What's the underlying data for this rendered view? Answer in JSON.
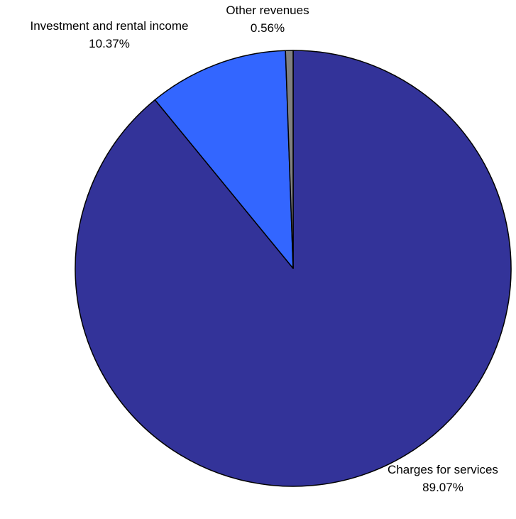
{
  "chart_data": {
    "type": "pie",
    "start_angle_deg": 0,
    "direction": "counterclockwise-from-top",
    "slices": [
      {
        "label": "Charges for services",
        "value": 89.07,
        "value_label": "89.07%",
        "color": "#333399"
      },
      {
        "label": "Investment and rental income",
        "value": 10.37,
        "value_label": "10.37%",
        "color": "#3366FF"
      },
      {
        "label": "Other revenues",
        "value": 0.56,
        "value_label": "0.56%",
        "color": "#808080"
      }
    ],
    "title": "",
    "legend": "none"
  }
}
